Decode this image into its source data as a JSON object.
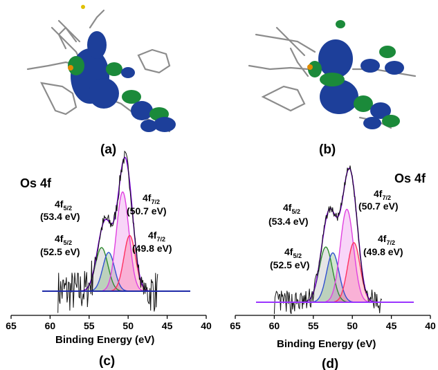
{
  "panel_labels": [
    "(a)",
    "(b)",
    "(c)",
    "(d)"
  ],
  "colors": {
    "fit_envelope": "#7a00d6",
    "baseline": "#9a33ff",
    "baseline_c": "#1e2aa8",
    "peak_53_4": "#8a8a8a",
    "peak_52_5_a": "#2e8b2e",
    "peak_52_5_b": "#3050d0",
    "peak_50_7": "#e040e0",
    "peak_49_8": "#ff3060",
    "orbital_lobe": "#1d3f9a",
    "orbital_lobe_alt": "#1b8a3a",
    "molecule": "#8c8c8c"
  },
  "molecule_images": [
    {
      "name": "orbital-plot-a",
      "label": "(a)"
    },
    {
      "name": "orbital-plot-b",
      "label": "(b)"
    }
  ],
  "chart_data": [
    {
      "type": "line",
      "panel": "(c)",
      "title": "Os 4f",
      "xlabel": "Binding Energy (eV)",
      "ylabel": "",
      "xlim": [
        65,
        40
      ],
      "x_ticks": [
        65,
        60,
        55,
        50,
        45,
        40
      ],
      "grid": false,
      "components": [
        {
          "orbital": "4f",
          "sub": "5/2",
          "energy": "(53.4 eV)",
          "center": 53.4,
          "height": 0.36,
          "width": 0.8
        },
        {
          "orbital": "4f",
          "sub": "5/2",
          "energy": "(52.5 eV)",
          "center": 52.5,
          "height": 0.32,
          "width": 0.75
        },
        {
          "orbital": "4f",
          "sub": "7/2",
          "energy": "(50.7 eV)",
          "center": 50.7,
          "height": 0.82,
          "width": 0.8
        },
        {
          "orbital": "4f",
          "sub": "7/2",
          "energy": "(49.8 eV)",
          "center": 49.8,
          "height": 0.46,
          "width": 0.75
        }
      ]
    },
    {
      "type": "line",
      "panel": "(d)",
      "title": "Os 4f",
      "xlabel": "Binding Energy (eV)",
      "ylabel": "",
      "xlim": [
        65,
        40
      ],
      "x_ticks": [
        65,
        60,
        55,
        50,
        45,
        40
      ],
      "grid": false,
      "components": [
        {
          "orbital": "4f",
          "sub": "5/2",
          "energy": "(53.4 eV)",
          "center": 53.4,
          "height": 0.38,
          "width": 0.85
        },
        {
          "orbital": "4f",
          "sub": "5/2",
          "energy": "(52.5 eV)",
          "center": 52.5,
          "height": 0.34,
          "width": 0.8
        },
        {
          "orbital": "4f",
          "sub": "7/2",
          "energy": "(50.7 eV)",
          "center": 50.7,
          "height": 0.64,
          "width": 0.85
        },
        {
          "orbital": "4f",
          "sub": "7/2",
          "energy": "(49.8 eV)",
          "center": 49.8,
          "height": 0.41,
          "width": 0.8
        }
      ]
    }
  ]
}
